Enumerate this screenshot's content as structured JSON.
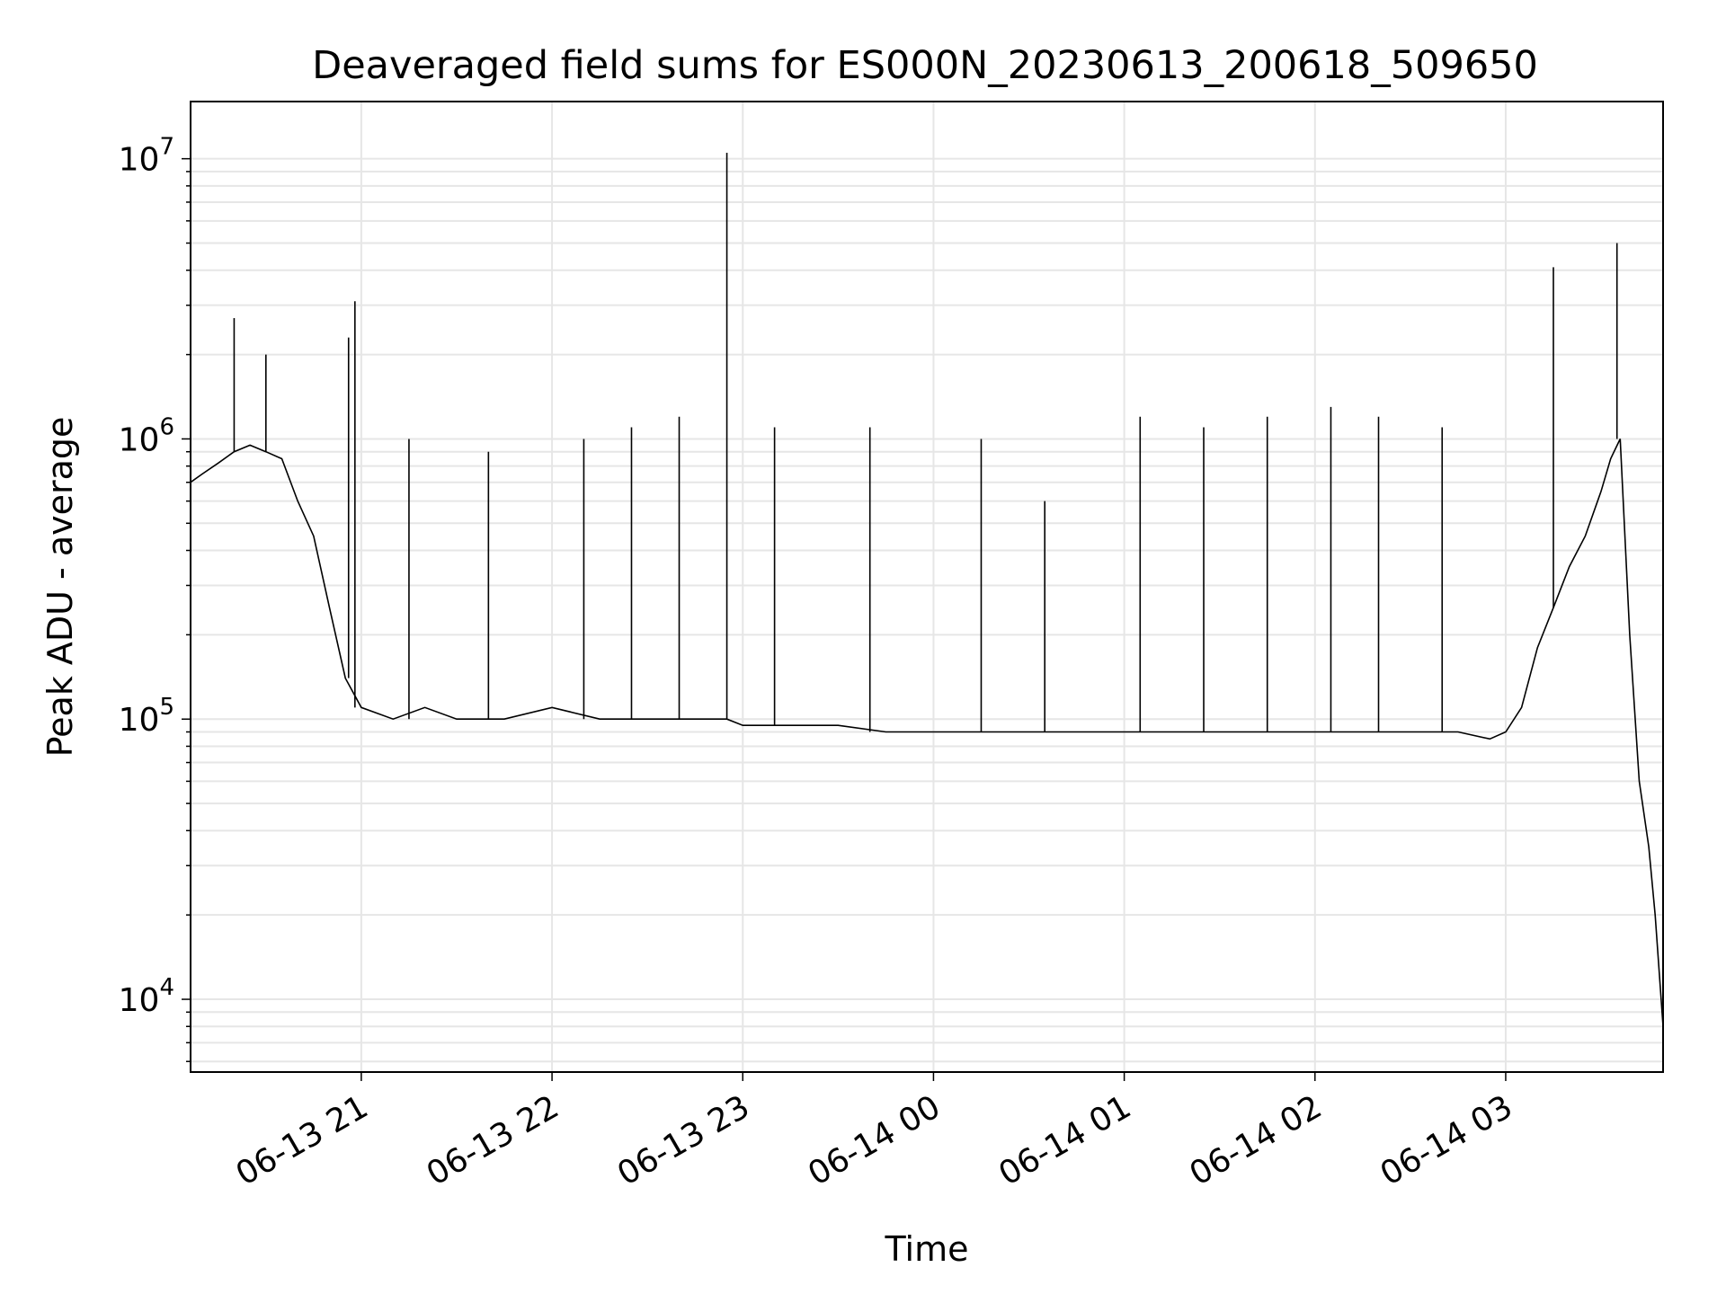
{
  "chart_data": {
    "type": "line",
    "title": "Deaveraged field sums for ES000N_20230613_200618_509650",
    "xlabel": "Time",
    "ylabel": "Peak ADU - average",
    "yscale": "log",
    "ylim": [
      5500,
      16000000
    ],
    "xlim": [
      "2023-06-13 20:06:18",
      "2023-06-14 03:49:30"
    ],
    "grid": true,
    "line_color": "#000000",
    "grid_color": "#e6e6e6",
    "x_ticks": [
      {
        "value": "2023-06-13 21:00",
        "label": "06-13 21"
      },
      {
        "value": "2023-06-13 22:00",
        "label": "06-13 22"
      },
      {
        "value": "2023-06-13 23:00",
        "label": "06-13 23"
      },
      {
        "value": "2023-06-14 00:00",
        "label": "06-14 00"
      },
      {
        "value": "2023-06-14 01:00",
        "label": "06-14 01"
      },
      {
        "value": "2023-06-14 02:00",
        "label": "06-14 02"
      },
      {
        "value": "2023-06-14 03:00",
        "label": "06-14 03"
      }
    ],
    "y_ticks": [
      {
        "value": 10000,
        "base": "10",
        "exp": "4"
      },
      {
        "value": 100000,
        "base": "10",
        "exp": "5"
      },
      {
        "value": 1000000,
        "base": "10",
        "exp": "6"
      },
      {
        "value": 10000000,
        "base": "10",
        "exp": "7"
      }
    ],
    "series": [
      {
        "x": [
          "2023-06-13 20:06:18",
          "2023-06-13 20:10",
          "2023-06-13 20:15",
          "2023-06-13 20:20",
          "2023-06-13 20:25",
          "2023-06-13 20:30",
          "2023-06-13 20:35",
          "2023-06-13 20:40",
          "2023-06-13 20:45",
          "2023-06-13 20:50",
          "2023-06-13 20:55",
          "2023-06-13 21:00",
          "2023-06-13 21:10",
          "2023-06-13 21:20",
          "2023-06-13 21:30",
          "2023-06-13 21:45",
          "2023-06-13 22:00",
          "2023-06-13 22:15",
          "2023-06-13 22:30",
          "2023-06-13 22:45",
          "2023-06-13 22:55",
          "2023-06-13 23:00",
          "2023-06-13 23:15",
          "2023-06-13 23:30",
          "2023-06-13 23:45",
          "2023-06-14 00:00",
          "2023-06-14 00:15",
          "2023-06-14 00:30",
          "2023-06-14 00:45",
          "2023-06-14 01:00",
          "2023-06-14 01:15",
          "2023-06-14 01:30",
          "2023-06-14 01:45",
          "2023-06-14 02:00",
          "2023-06-14 02:15",
          "2023-06-14 02:30",
          "2023-06-14 02:45",
          "2023-06-14 02:55",
          "2023-06-14 03:00",
          "2023-06-14 03:05",
          "2023-06-14 03:10",
          "2023-06-14 03:15",
          "2023-06-14 03:20",
          "2023-06-14 03:25",
          "2023-06-14 03:30",
          "2023-06-14 03:33",
          "2023-06-14 03:36",
          "2023-06-14 03:39",
          "2023-06-14 03:42",
          "2023-06-14 03:45",
          "2023-06-14 03:47",
          "2023-06-14 03:49:30"
        ],
        "y": [
          700000,
          750000,
          820000,
          900000,
          950000,
          900000,
          850000,
          600000,
          450000,
          250000,
          140000,
          110000,
          100000,
          110000,
          100000,
          100000,
          110000,
          100000,
          100000,
          100000,
          100000,
          95000,
          95000,
          95000,
          90000,
          90000,
          90000,
          90000,
          90000,
          90000,
          90000,
          90000,
          90000,
          90000,
          90000,
          90000,
          90000,
          85000,
          90000,
          110000,
          180000,
          250000,
          350000,
          450000,
          650000,
          850000,
          1000000,
          200000,
          60000,
          35000,
          20000,
          8000
        ],
        "spikes": [
          {
            "x": "2023-06-13 20:20",
            "y": 2700000
          },
          {
            "x": "2023-06-13 20:30",
            "y": 2000000
          },
          {
            "x": "2023-06-13 20:58",
            "y": 3100000
          },
          {
            "x": "2023-06-13 20:56",
            "y": 2300000
          },
          {
            "x": "2023-06-13 21:15",
            "y": 1000000
          },
          {
            "x": "2023-06-13 21:40",
            "y": 900000
          },
          {
            "x": "2023-06-13 22:10",
            "y": 1000000
          },
          {
            "x": "2023-06-13 22:25",
            "y": 1100000
          },
          {
            "x": "2023-06-13 22:40",
            "y": 1200000
          },
          {
            "x": "2023-06-13 22:55",
            "y": 10500000
          },
          {
            "x": "2023-06-13 23:10",
            "y": 1100000
          },
          {
            "x": "2023-06-13 23:40",
            "y": 1100000
          },
          {
            "x": "2023-06-14 00:15",
            "y": 1000000
          },
          {
            "x": "2023-06-14 00:35",
            "y": 600000
          },
          {
            "x": "2023-06-14 01:05",
            "y": 1200000
          },
          {
            "x": "2023-06-14 01:25",
            "y": 1100000
          },
          {
            "x": "2023-06-14 01:45",
            "y": 1200000
          },
          {
            "x": "2023-06-14 02:05",
            "y": 1300000
          },
          {
            "x": "2023-06-14 02:20",
            "y": 1200000
          },
          {
            "x": "2023-06-14 02:40",
            "y": 1100000
          },
          {
            "x": "2023-06-14 03:15",
            "y": 4100000
          },
          {
            "x": "2023-06-14 03:35",
            "y": 5000000
          }
        ]
      }
    ]
  }
}
